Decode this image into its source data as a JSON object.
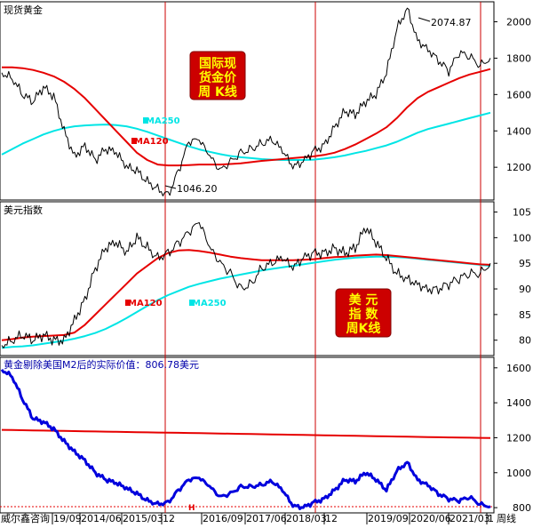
{
  "panel1": {
    "title": "现货黄金",
    "ma120_label": "MA120",
    "ma250_label": "MA250",
    "high_annotation": "2074.87",
    "low_annotation": "1046.20",
    "overlay_lines": [
      "国际现",
      "货金价",
      "周 K线"
    ],
    "yticks": [
      "2000",
      "1800",
      "1600",
      "1400",
      "1200"
    ]
  },
  "panel2": {
    "title": "美元指数",
    "ma120_label": "MA120",
    "ma250_label": "MA250",
    "overlay_lines": [
      "美  元",
      "指  数",
      "周K线"
    ],
    "yticks": [
      "105",
      "100",
      "95",
      "90",
      "85",
      "80"
    ]
  },
  "panel3": {
    "title": "黄金剔除美国M2后的实际价值：806.78美元",
    "yticks": [
      "1600",
      "1400",
      "1200",
      "1000",
      "800"
    ],
    "marker": "H"
  },
  "footer": {
    "source": "威尔鑫咨询",
    "dates": [
      "19/09",
      "2014/06",
      "2015/03",
      "12",
      "2016/09",
      "2017/06",
      "2018/03",
      "12",
      "2019/09",
      "2020/06",
      "2021/03",
      "1"
    ],
    "period": "周线"
  },
  "colors": {
    "price": "#000000",
    "ma120": "#e60000",
    "ma250": "#00e5e5",
    "real_value": "#0000dd",
    "separator": "#cc0000",
    "overlay_bg": "#cc0000",
    "overlay_text": "#ffff00"
  },
  "chart_data": [
    {
      "type": "line",
      "title": "现货黄金",
      "x_range": [
        "2011",
        "2021"
      ],
      "ylim": [
        1020,
        2110
      ],
      "annotations": [
        {
          "text": "2074.87",
          "x": "2020/08",
          "y": 2074.87
        },
        {
          "text": "1046.20",
          "x": "2015/12",
          "y": 1046.2
        }
      ],
      "series": [
        {
          "name": "现货黄金",
          "values": [
            1720,
            1690,
            1600,
            1560,
            1640,
            1590,
            1400,
            1260,
            1320,
            1240,
            1300,
            1280,
            1200,
            1180,
            1120,
            1080,
            1046.2,
            1180,
            1340,
            1350,
            1260,
            1180,
            1230,
            1280,
            1300,
            1330,
            1350,
            1290,
            1200,
            1230,
            1290,
            1320,
            1420,
            1510,
            1490,
            1560,
            1600,
            1720,
            1960,
            2074.87,
            1900,
            1850,
            1790,
            1730,
            1830,
            1810,
            1760,
            1800
          ]
        },
        {
          "name": "MA120",
          "values": [
            1750,
            1750,
            1745,
            1735,
            1720,
            1700,
            1670,
            1630,
            1580,
            1520,
            1460,
            1400,
            1340,
            1280,
            1240,
            1215,
            1210,
            1210,
            1212,
            1215,
            1215,
            1215,
            1218,
            1222,
            1228,
            1235,
            1240,
            1245,
            1250,
            1255,
            1260,
            1268,
            1280,
            1300,
            1325,
            1355,
            1385,
            1420,
            1470,
            1530,
            1580,
            1615,
            1640,
            1665,
            1690,
            1710,
            1725,
            1740
          ]
        },
        {
          "name": "MA250",
          "values": [
            1270,
            1300,
            1330,
            1355,
            1380,
            1400,
            1415,
            1425,
            1430,
            1433,
            1435,
            1432,
            1425,
            1412,
            1395,
            1375,
            1355,
            1335,
            1315,
            1298,
            1285,
            1272,
            1262,
            1255,
            1250,
            1245,
            1242,
            1240,
            1240,
            1240,
            1242,
            1248,
            1255,
            1265,
            1278,
            1290,
            1305,
            1320,
            1340,
            1365,
            1390,
            1410,
            1425,
            1440,
            1455,
            1470,
            1485,
            1500
          ]
        }
      ]
    },
    {
      "type": "line",
      "title": "美元指数",
      "ylim": [
        77,
        107
      ],
      "series": [
        {
          "name": "美元指数",
          "values": [
            79,
            80,
            81,
            80,
            81,
            80,
            80,
            84,
            88,
            94,
            98,
            99,
            97,
            100,
            98,
            96,
            97,
            99,
            101,
            103,
            98,
            95,
            93,
            90,
            91,
            94,
            95,
            96,
            94,
            96,
            97,
            97,
            98,
            97,
            98,
            102,
            99,
            96,
            93,
            92,
            91,
            90,
            90,
            91,
            92,
            93,
            93,
            95
          ]
        },
        {
          "name": "MA120",
          "values": [
            80,
            80.2,
            80.5,
            80.7,
            80.8,
            80.9,
            81,
            81.5,
            83,
            85,
            87,
            89,
            91,
            93,
            94.5,
            96,
            97,
            97.5,
            97.6,
            97.4,
            97.1,
            96.7,
            96.3,
            96,
            95.8,
            95.6,
            95.6,
            95.6,
            95.6,
            95.7,
            95.8,
            96,
            96.2,
            96.3,
            96.5,
            96.6,
            96.7,
            96.6,
            96.4,
            96.2,
            96,
            95.8,
            95.6,
            95.4,
            95.2,
            95,
            94.8,
            94.7
          ]
        },
        {
          "name": "MA250",
          "values": [
            78.5,
            78.7,
            78.8,
            79,
            79.3,
            79.6,
            79.9,
            80.3,
            80.8,
            81.4,
            82.2,
            83.2,
            84.3,
            85.5,
            86.7,
            87.8,
            88.8,
            89.6,
            90.4,
            91,
            91.5,
            92,
            92.4,
            92.8,
            93.2,
            93.6,
            93.9,
            94.2,
            94.5,
            94.8,
            95.1,
            95.4,
            95.7,
            95.9,
            96.1,
            96.2,
            96.3,
            96.3,
            96.2,
            96.1,
            95.9,
            95.7,
            95.5,
            95.3,
            95.1,
            94.9,
            94.7,
            94.5
          ]
        }
      ]
    },
    {
      "type": "line",
      "title": "黄金剔除美国M2后的实际价值：806.78美元",
      "ylim": [
        770,
        1660
      ],
      "series": [
        {
          "name": "黄金剔除美国M2后的实际价值",
          "values": [
            1590,
            1550,
            1420,
            1310,
            1290,
            1250,
            1180,
            1120,
            1070,
            1000,
            960,
            940,
            910,
            880,
            840,
            820,
            830,
            900,
            960,
            970,
            920,
            860,
            880,
            920,
            920,
            930,
            950,
            900,
            810,
            800,
            830,
            850,
            900,
            960,
            950,
            1000,
            960,
            900,
            1010,
            1060,
            960,
            930,
            880,
            850,
            840,
            860,
            820,
            806.78
          ]
        },
        {
          "name": "MA",
          "values": [
            1245,
            1244,
            1243,
            1242,
            1241,
            1240,
            1239,
            1238,
            1237,
            1236,
            1235,
            1234,
            1233,
            1232,
            1231,
            1230,
            1229,
            1228,
            1227,
            1226,
            1225,
            1224,
            1223,
            1222,
            1221,
            1220,
            1219,
            1218,
            1217,
            1216,
            1215,
            1214,
            1213,
            1212,
            1211,
            1210,
            1209,
            1208,
            1207,
            1206,
            1205,
            1204,
            1203,
            1202,
            1201,
            1200,
            1199,
            1198
          ]
        }
      ]
    }
  ]
}
